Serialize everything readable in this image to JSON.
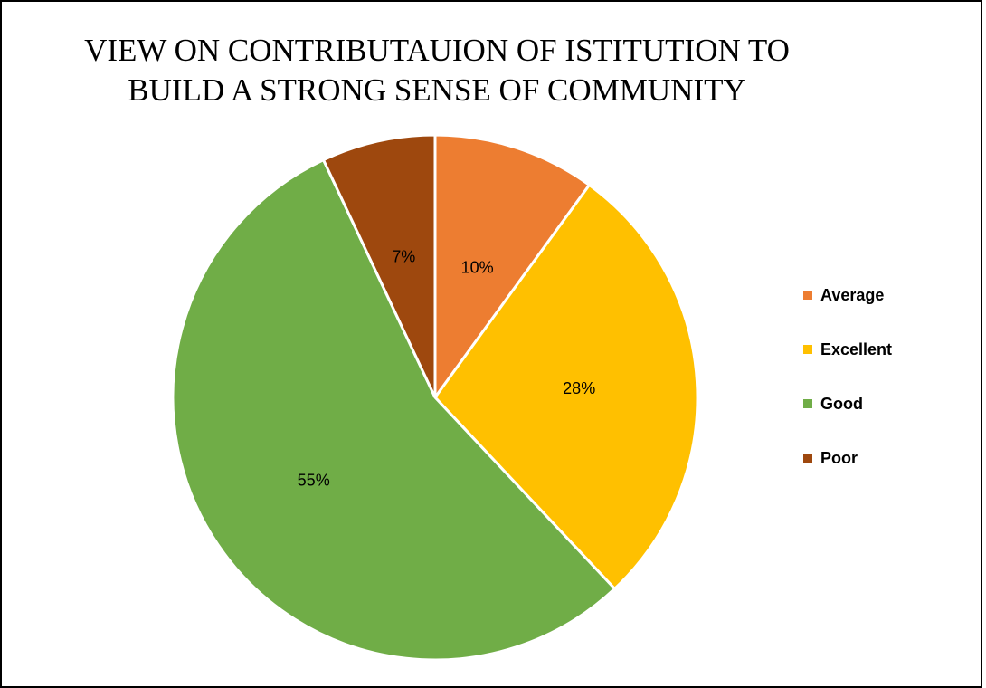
{
  "chart_data": {
    "type": "pie",
    "title_lines": [
      "VIEW ON CONTRIBUTAUION OF ISTITUTION TO",
      "BUILD A STRONG SENSE OF COMMUNITY"
    ],
    "categories": [
      "Average",
      "Excellent",
      "Good",
      "Poor"
    ],
    "values": [
      10,
      28,
      55,
      7
    ],
    "labels": [
      "10%",
      "28%",
      "55%",
      "7%"
    ],
    "colors": [
      "#ED7D31",
      "#FFC000",
      "#70AD47",
      "#9E480E"
    ],
    "legend_position": "right",
    "start_angle": "12 o'clock, clockwise"
  }
}
